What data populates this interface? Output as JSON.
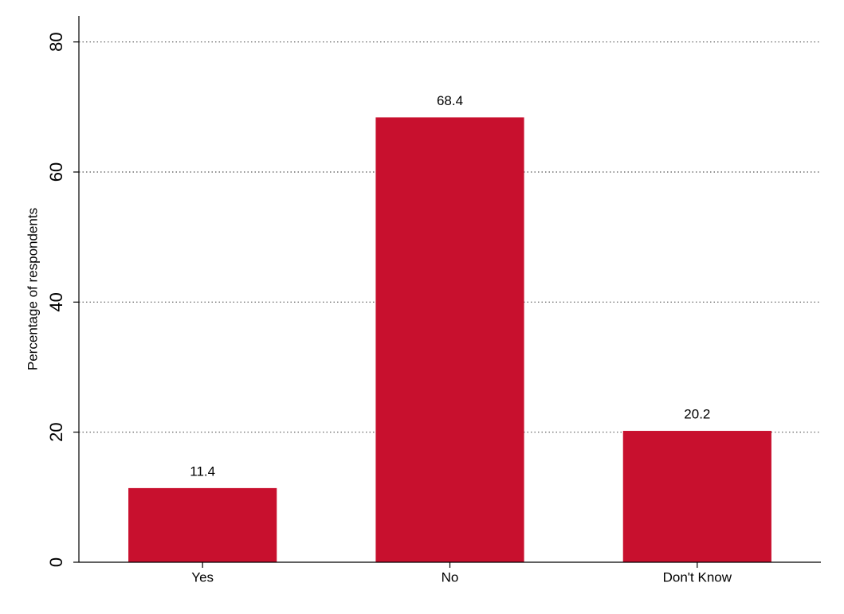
{
  "chart_data": {
    "type": "bar",
    "y_label": "Percentage of respondents",
    "categories": [
      "Yes",
      "No",
      "Don't Know"
    ],
    "values": [
      11.4,
      68.4,
      20.2
    ],
    "color": "#c8102e",
    "ylim": [
      0,
      84
    ],
    "yticks": [
      0,
      20,
      40,
      60,
      80
    ],
    "grid": true
  }
}
